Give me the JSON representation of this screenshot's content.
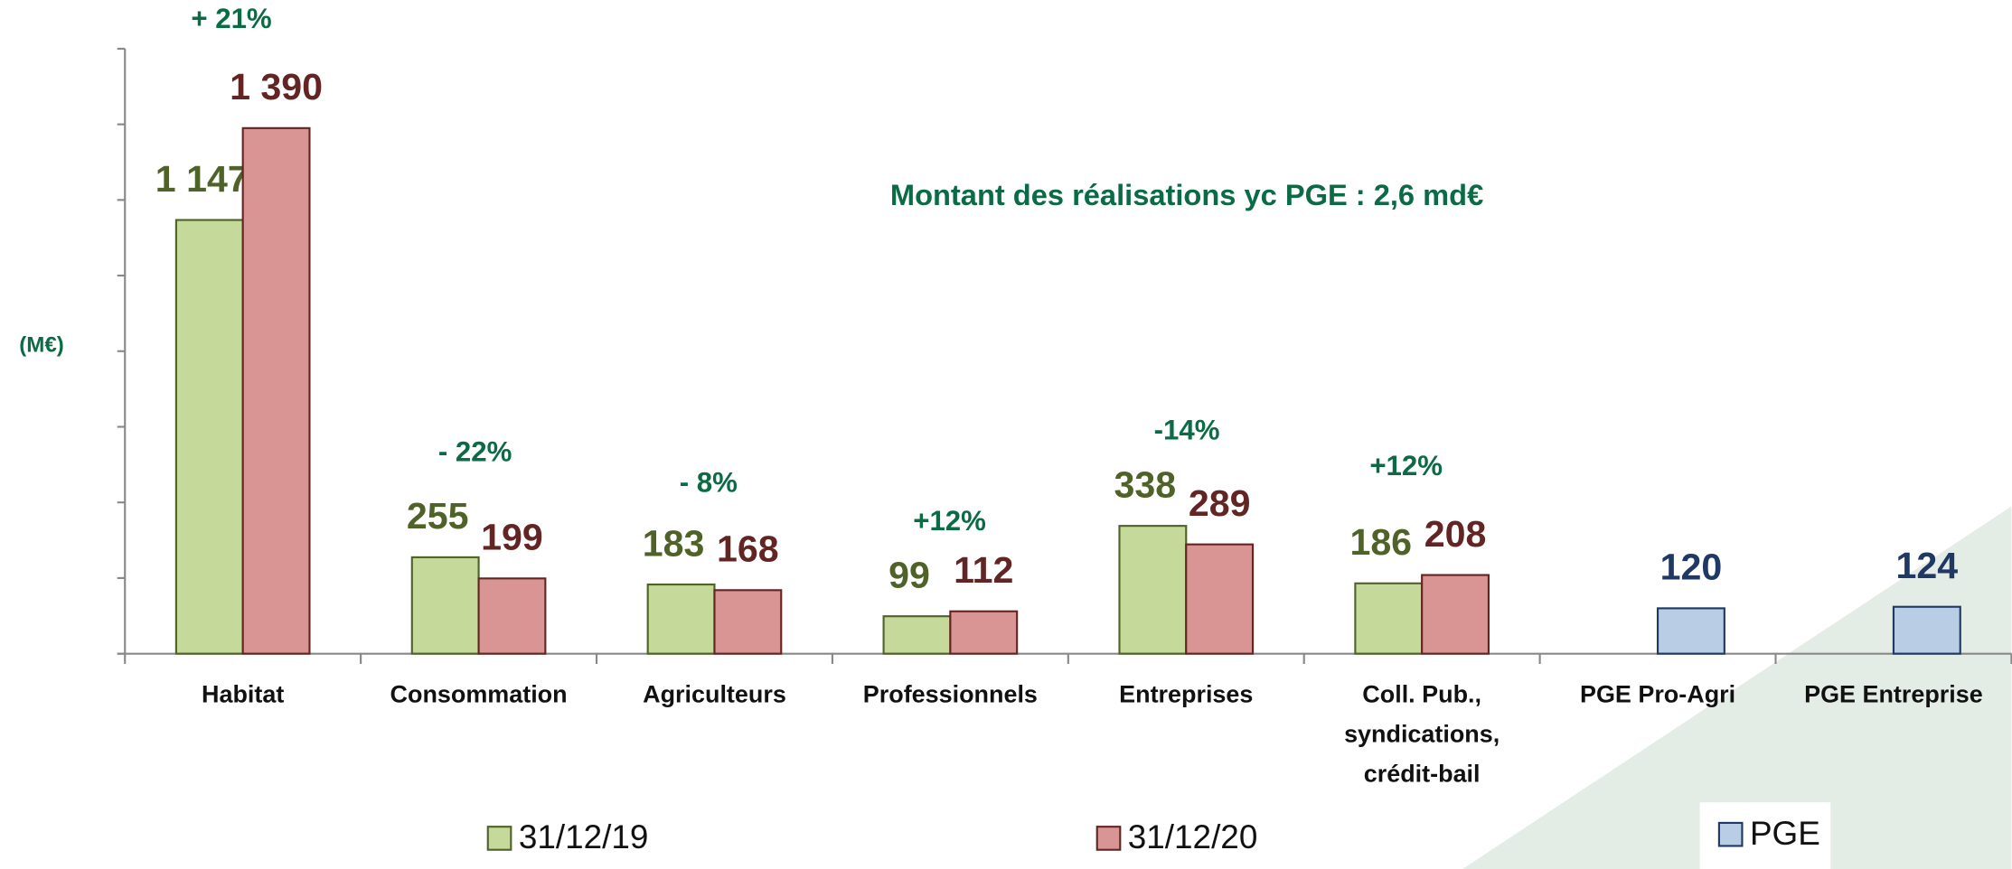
{
  "chart_data": {
    "type": "bar",
    "title": "Montant des réalisations yc PGE  :  2,6 md€",
    "y_label": "(M€)",
    "categories": [
      "Habitat",
      "Consommation",
      "Agriculteurs",
      "Professionnels",
      "Entreprises",
      "Coll. Pub., syndications, crédit-bail",
      "PGE Pro-Agri",
      "PGE Entreprise"
    ],
    "series": [
      {
        "name": "31/12/19",
        "color": "#c4d99a",
        "values": [
          1147,
          255,
          183,
          99,
          338,
          186,
          null,
          null
        ],
        "value_labels": [
          "1 147",
          "255",
          "183",
          "99",
          "338",
          "186",
          null,
          null
        ]
      },
      {
        "name": "31/12/20",
        "color": "#d99594",
        "values": [
          1390,
          199,
          168,
          112,
          289,
          208,
          null,
          null
        ],
        "value_labels": [
          "1 390",
          "199",
          "168",
          "112",
          "289",
          "208",
          null,
          null
        ]
      },
      {
        "name": "PGE",
        "color": "#b9cde5",
        "values": [
          null,
          null,
          null,
          null,
          null,
          null,
          120,
          124
        ],
        "value_labels": [
          null,
          null,
          null,
          null,
          null,
          null,
          "120",
          "124"
        ]
      }
    ],
    "annotations": [
      "+ 21%",
      "- 22%",
      "- 8%",
      "+12%",
      "-14%",
      "+12%"
    ],
    "ylim": [
      0,
      1600
    ],
    "yticks": [
      0,
      200,
      400,
      600,
      800,
      1000,
      1200,
      1400,
      1600
    ]
  }
}
